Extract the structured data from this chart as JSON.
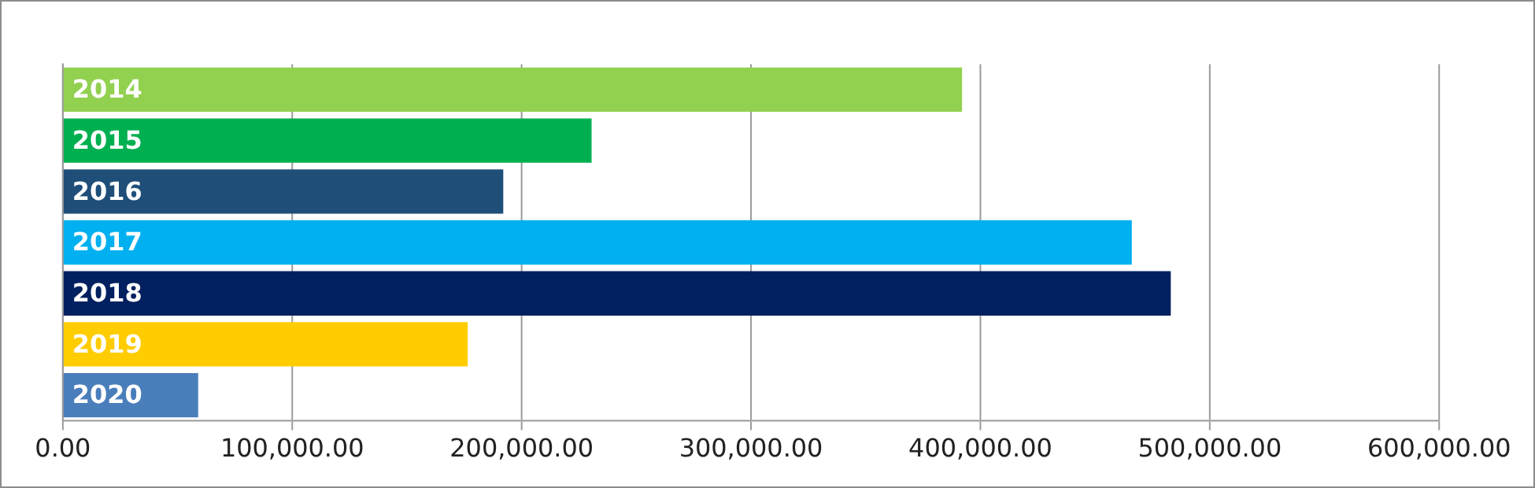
{
  "chart_data": {
    "type": "bar",
    "orientation": "horizontal",
    "categories": [
      "2014",
      "2015",
      "2016",
      "2017",
      "2018",
      "2019",
      "2020"
    ],
    "values": [
      392000,
      230500,
      192000,
      466000,
      483000,
      176500,
      59000
    ],
    "colors": [
      "#92d050",
      "#00b050",
      "#1f4e79",
      "#00b0f0",
      "#002060",
      "#ffcc00",
      "#4a7ebb"
    ],
    "xlim": [
      0,
      600000
    ],
    "xticks": [
      {
        "value": 0,
        "label": "0.00"
      },
      {
        "value": 100000,
        "label": "100,000.00"
      },
      {
        "value": 200000,
        "label": "200,000.00"
      },
      {
        "value": 300000,
        "label": "300,000.00"
      },
      {
        "value": 400000,
        "label": "400,000.00"
      },
      {
        "value": 500000,
        "label": "500,000.00"
      },
      {
        "value": 600000,
        "label": "600,000.00"
      }
    ],
    "grid": "x"
  }
}
